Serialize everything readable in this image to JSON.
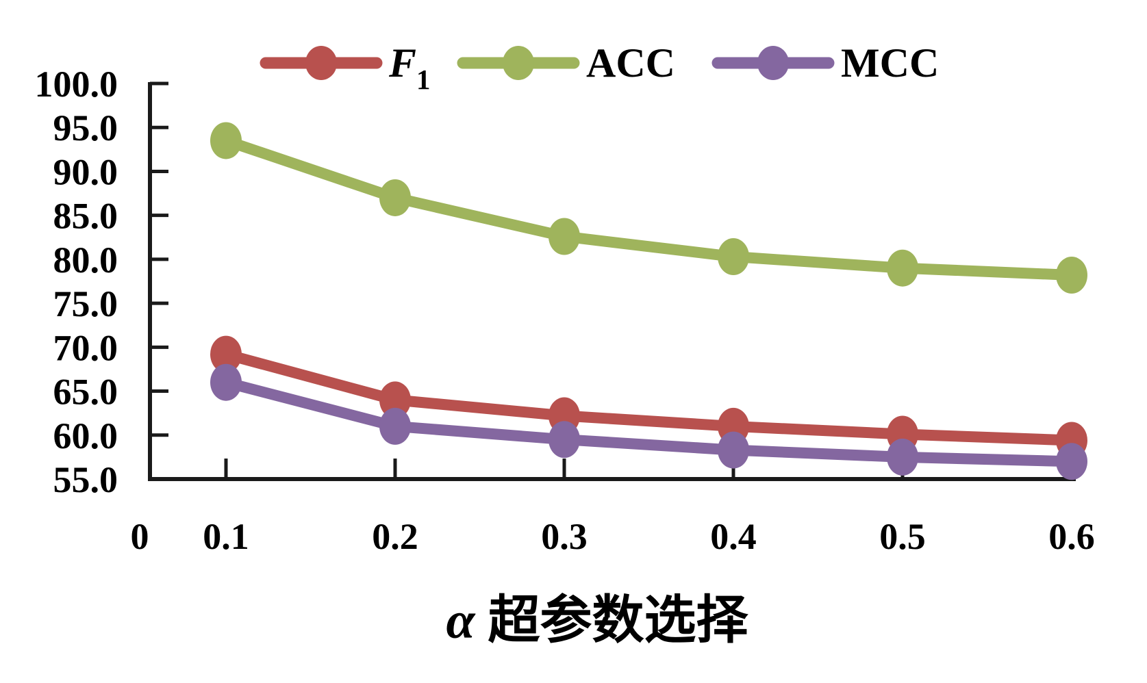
{
  "figure": {
    "background": "#ffffff",
    "axis_color": "#1a1a1a",
    "text_color": "#000000"
  },
  "chart_data": {
    "type": "line",
    "title": "",
    "xlabel": "α超参数选择",
    "xlabel_symbol": "α",
    "xlabel_text": "超参数选择",
    "ylabel": "",
    "origin_label": "0",
    "x_categories": [
      "0.1",
      "0.2",
      "0.3",
      "0.4",
      "0.5",
      "0.6"
    ],
    "ylim": [
      55,
      100
    ],
    "yticks": [
      100,
      95,
      90,
      85,
      80,
      75,
      70,
      65,
      60,
      55
    ],
    "ytick_decimals": 1,
    "grid": false,
    "legend_position": "top-center",
    "marker": "ellipse",
    "series": [
      {
        "name": "F1",
        "legend_label": "F",
        "legend_sub": "1",
        "legend_italic": true,
        "color": "#B8514E",
        "values": [
          69.2,
          64.0,
          62.2,
          61.0,
          60.1,
          59.4
        ]
      },
      {
        "name": "ACC",
        "legend_label": "ACC",
        "legend_sub": "",
        "legend_italic": false,
        "color": "#9FB45C",
        "values": [
          93.5,
          87.0,
          82.6,
          80.3,
          79.0,
          78.2
        ]
      },
      {
        "name": "MCC",
        "legend_label": "MCC",
        "legend_sub": "",
        "legend_italic": false,
        "color": "#8467A0",
        "values": [
          66.0,
          61.0,
          59.5,
          58.3,
          57.5,
          57.0
        ]
      }
    ]
  }
}
